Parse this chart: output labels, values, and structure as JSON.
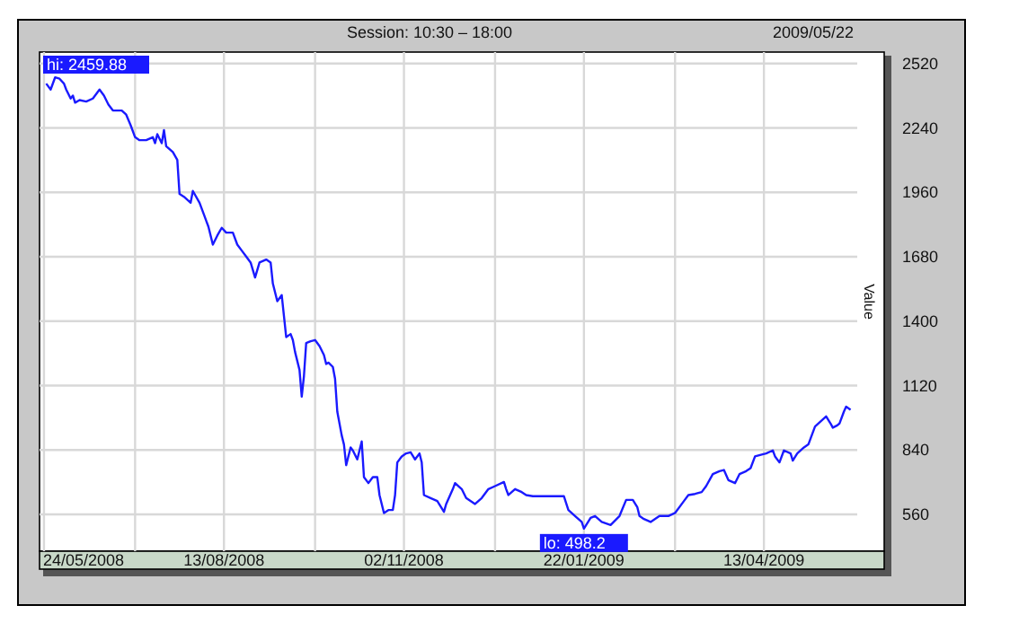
{
  "chart_data": {
    "type": "line",
    "title": "Session: 10:30 – 18:00",
    "subtitle": "2009/05/22",
    "ylabel": "Value",
    "xlim": [
      "2008-05-22",
      "2009-05-25"
    ],
    "ylim": [
      400,
      2570
    ],
    "yticks": [
      560,
      840,
      1120,
      1400,
      1680,
      1960,
      2240,
      2520
    ],
    "xticks": [
      {
        "value": "2008-05-24",
        "label": "24/05/2008"
      },
      {
        "value": "2008-07-04",
        "label": null
      },
      {
        "value": "2008-08-13",
        "label": "13/08/2008"
      },
      {
        "value": "2008-09-23",
        "label": null
      },
      {
        "value": "2008-11-02",
        "label": "02/11/2008"
      },
      {
        "value": "2008-12-13",
        "label": null
      },
      {
        "value": "2009-01-22",
        "label": "22/01/2009"
      },
      {
        "value": "2009-03-04",
        "label": null
      },
      {
        "value": "2009-04-13",
        "label": "13/04/2009"
      }
    ],
    "grid": true,
    "marker": "none",
    "line_style": "solid",
    "annotations": [
      {
        "text": "hi: 2459.88",
        "x": "2008-05-29",
        "y": 2459.88
      },
      {
        "text": "lo: 498.2",
        "x": "2009-01-22",
        "y": 498.2
      }
    ],
    "series": [
      {
        "color": "#1a1aff",
        "x": [
          "2008-05-25",
          "2008-05-27",
          "2008-05-29",
          "2008-05-31",
          "2008-06-02",
          "2008-06-03",
          "2008-06-05",
          "2008-06-06",
          "2008-06-07",
          "2008-06-09",
          "2008-06-12",
          "2008-06-15",
          "2008-06-18",
          "2008-06-20",
          "2008-06-22",
          "2008-06-24",
          "2008-06-28",
          "2008-06-30",
          "2008-07-02",
          "2008-07-04",
          "2008-07-06",
          "2008-07-09",
          "2008-07-12",
          "2008-07-13",
          "2008-07-14",
          "2008-07-16",
          "2008-07-17",
          "2008-07-18",
          "2008-07-21",
          "2008-07-23",
          "2008-07-24",
          "2008-07-26",
          "2008-07-29",
          "2008-07-30",
          "2008-08-02",
          "2008-08-04",
          "2008-08-05",
          "2008-08-06",
          "2008-08-08",
          "2008-08-10",
          "2008-08-12",
          "2008-08-14",
          "2008-08-17",
          "2008-08-19",
          "2008-08-21",
          "2008-08-23",
          "2008-08-25",
          "2008-08-27",
          "2008-08-29",
          "2008-09-01",
          "2008-09-03",
          "2008-09-04",
          "2008-09-06",
          "2008-09-08",
          "2008-09-09",
          "2008-09-10",
          "2008-09-12",
          "2008-09-13",
          "2008-09-14",
          "2008-09-16",
          "2008-09-17",
          "2008-09-18",
          "2008-09-19",
          "2008-09-21",
          "2008-09-23",
          "2008-09-25",
          "2008-09-27",
          "2008-09-28",
          "2008-09-29",
          "2008-10-01",
          "2008-10-02",
          "2008-10-03",
          "2008-10-05",
          "2008-10-06",
          "2008-10-07",
          "2008-10-09",
          "2008-10-10",
          "2008-10-12",
          "2008-10-14",
          "2008-10-15",
          "2008-10-17",
          "2008-10-19",
          "2008-10-21",
          "2008-10-22",
          "2008-10-24",
          "2008-10-26",
          "2008-10-28",
          "2008-10-29",
          "2008-10-30",
          "2008-11-01",
          "2008-11-03",
          "2008-11-05",
          "2008-11-07",
          "2008-11-09",
          "2008-11-10",
          "2008-11-11",
          "2008-11-14",
          "2008-11-17",
          "2008-11-20",
          "2008-11-21",
          "2008-11-24",
          "2008-11-25",
          "2008-11-28",
          "2008-11-30",
          "2008-12-04",
          "2008-12-07",
          "2008-12-10",
          "2008-12-13",
          "2008-12-17",
          "2008-12-18",
          "2008-12-19",
          "2008-12-22",
          "2008-12-25",
          "2008-12-27",
          "2008-12-30",
          "2009-01-13",
          "2009-01-15",
          "2009-01-18",
          "2009-01-21",
          "2009-01-22",
          "2009-01-25",
          "2009-01-27",
          "2009-01-30",
          "2009-02-03",
          "2009-02-07",
          "2009-02-10",
          "2009-02-13",
          "2009-02-15",
          "2009-02-16",
          "2009-02-18",
          "2009-02-21",
          "2009-02-25",
          "2009-03-01",
          "2009-03-04",
          "2009-03-08",
          "2009-03-10",
          "2009-03-13",
          "2009-03-16",
          "2009-03-18",
          "2009-03-21",
          "2009-03-24",
          "2009-03-26",
          "2009-03-28",
          "2009-03-31",
          "2009-04-02",
          "2009-04-05",
          "2009-04-07",
          "2009-04-09",
          "2009-04-12",
          "2009-04-14",
          "2009-04-17",
          "2009-04-18",
          "2009-04-20",
          "2009-04-22",
          "2009-04-25",
          "2009-04-26",
          "2009-04-28",
          "2009-05-01",
          "2009-05-03",
          "2009-05-06",
          "2009-05-09",
          "2009-05-11",
          "2009-05-13",
          "2009-05-14",
          "2009-05-16",
          "2009-05-17",
          "2009-05-19",
          "2009-05-20",
          "2009-05-22"
        ],
        "values": [
          2433,
          2407,
          2459.88,
          2454,
          2433,
          2407,
          2368,
          2381,
          2350,
          2361,
          2355,
          2368,
          2407,
          2381,
          2342,
          2316,
          2316,
          2298,
          2252,
          2200,
          2187,
          2187,
          2200,
          2174,
          2213,
          2174,
          2231,
          2161,
          2135,
          2101,
          1953,
          1941,
          1915,
          1966,
          1915,
          1863,
          1837,
          1811,
          1733,
          1772,
          1806,
          1785,
          1785,
          1733,
          1707,
          1681,
          1655,
          1590,
          1655,
          1668,
          1655,
          1564,
          1487,
          1513,
          1422,
          1331,
          1344,
          1318,
          1266,
          1188,
          1072,
          1162,
          1305,
          1313,
          1318,
          1292,
          1253,
          1214,
          1220,
          1201,
          1149,
          1007,
          903,
          864,
          774,
          851,
          838,
          799,
          877,
          722,
          696,
          722,
          722,
          644,
          566,
          579,
          579,
          644,
          786,
          812,
          825,
          830,
          799,
          825,
          786,
          644,
          631,
          618,
          571,
          605,
          670,
          696,
          670,
          631,
          605,
          631,
          670,
          683,
          701,
          670,
          644,
          670,
          657,
          644,
          639,
          639,
          579,
          553,
          527,
          498.2,
          545,
          553,
          527,
          514,
          553,
          623,
          623,
          592,
          553,
          540,
          527,
          553,
          553,
          566,
          618,
          644,
          649,
          657,
          683,
          735,
          748,
          753,
          709,
          696,
          735,
          748,
          761,
          812,
          820,
          825,
          838,
          812,
          786,
          838,
          825,
          794,
          825,
          851,
          864,
          942,
          968,
          986,
          955,
          937,
          947,
          955,
          1007,
          1028,
          1015
        ]
      }
    ]
  }
}
